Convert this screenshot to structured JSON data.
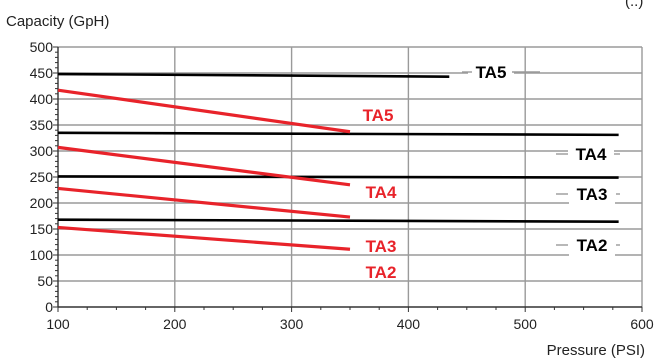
{
  "chart_data": {
    "type": "line",
    "title": "",
    "xlabel": "Pressure (PSI)",
    "ylabel": "Capacity (GpH)",
    "corner_text": "(..)",
    "xlim": [
      100,
      600
    ],
    "ylim": [
      0,
      500
    ],
    "x_ticks": [
      100,
      200,
      300,
      400,
      500,
      600
    ],
    "y_ticks": [
      0,
      50,
      100,
      150,
      200,
      250,
      300,
      350,
      400,
      450,
      500
    ],
    "grid": true,
    "colors": {
      "black": "#000000",
      "red": "#e8232a",
      "grid": "#9a9a9a"
    },
    "series": [
      {
        "name": "TA5",
        "color": "#000000",
        "x": [
          100,
          435
        ],
        "y": [
          448,
          443
        ]
      },
      {
        "name": "TA4",
        "color": "#000000",
        "x": [
          100,
          580
        ],
        "y": [
          335,
          331
        ]
      },
      {
        "name": "TA3",
        "color": "#000000",
        "x": [
          100,
          580
        ],
        "y": [
          251,
          249
        ]
      },
      {
        "name": "TA2",
        "color": "#000000",
        "x": [
          100,
          580
        ],
        "y": [
          168,
          164
        ]
      },
      {
        "name": "TA5",
        "color": "#e8232a",
        "x": [
          100,
          350
        ],
        "y": [
          417,
          337
        ]
      },
      {
        "name": "TA4",
        "color": "#e8232a",
        "x": [
          100,
          350
        ],
        "y": [
          307,
          235
        ]
      },
      {
        "name": "TA3",
        "color": "#e8232a",
        "x": [
          100,
          350
        ],
        "y": [
          228,
          173
        ]
      },
      {
        "name": "TA2",
        "color": "#e8232a",
        "x": [
          100,
          350
        ],
        "y": [
          153,
          111
        ]
      }
    ]
  }
}
